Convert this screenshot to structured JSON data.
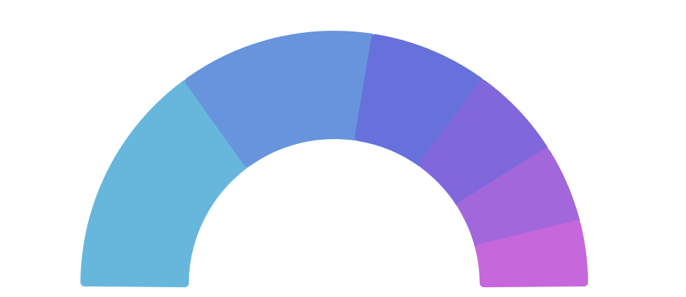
{
  "chart_data": {
    "type": "pie",
    "variant": "semi-donut",
    "title": "",
    "start_angle_deg": -90,
    "end_angle_deg": 90,
    "slices": [
      {
        "value": 30,
        "color": "#67b7dc"
      },
      {
        "value": 25,
        "color": "#6794dc"
      },
      {
        "value": 15,
        "color": "#6771dc"
      },
      {
        "value": 12,
        "color": "#8067dc"
      },
      {
        "value": 10,
        "color": "#a367dc"
      },
      {
        "value": 8,
        "color": "#c767dc"
      }
    ]
  }
}
